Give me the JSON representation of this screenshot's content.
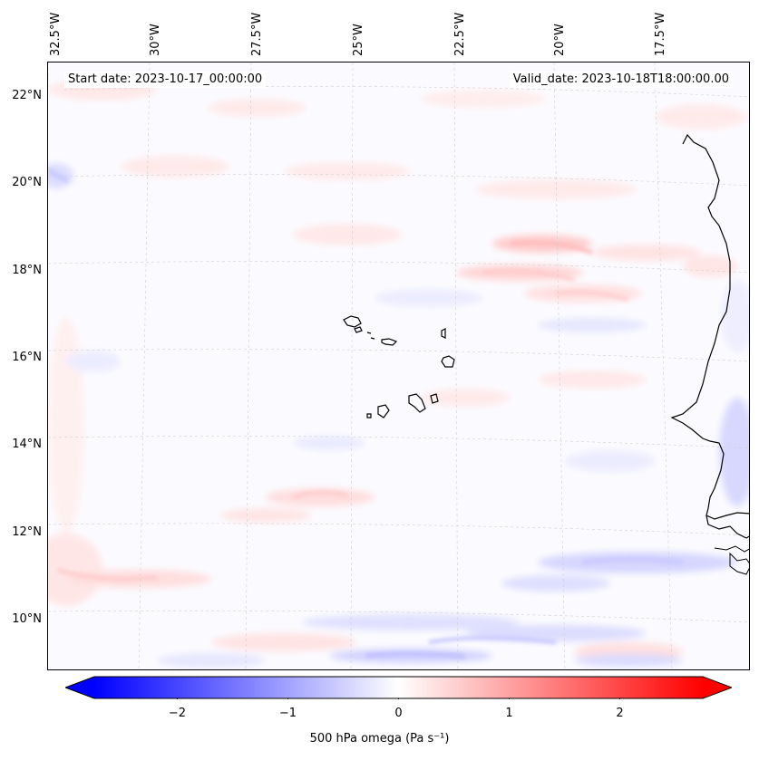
{
  "map": {
    "start_date": "Start date: 2023-10-17_00:00:00",
    "valid_date": "Valid_date: 2023-10-18T18:00:00.00",
    "lon_labels": [
      "32.5°W",
      "30°W",
      "27.5°W",
      "25°W",
      "22.5°W",
      "20°W",
      "17.5°W"
    ],
    "lat_labels": [
      "22°N",
      "20°N",
      "18°N",
      "16°N",
      "14°N",
      "12°N",
      "10°N"
    ],
    "coastline_color": "#000000",
    "grid_color": "#bbbbbb"
  },
  "colorbar": {
    "label": "500 hPa omega (Pa s⁻¹)",
    "ticks": [
      "−2",
      "−1",
      "0",
      "1",
      "2"
    ],
    "min": -2.75,
    "max": 2.75,
    "tick_values": [
      -2,
      -1,
      0,
      1,
      2
    ],
    "low_color": "#0000ff",
    "mid_color": "#ffffff",
    "high_color": "#ff0000"
  }
}
